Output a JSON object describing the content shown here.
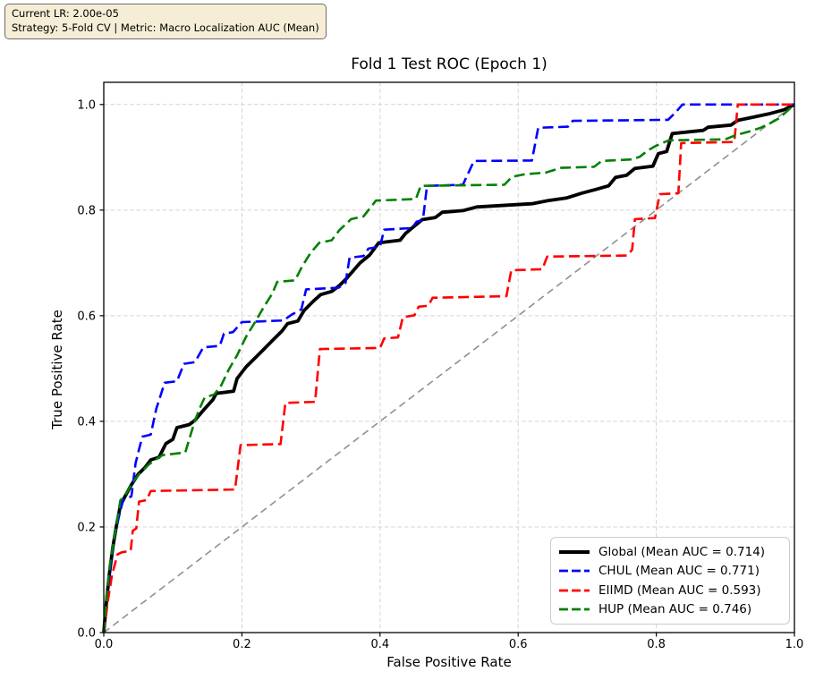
{
  "info_box": {
    "line1": "Current LR: 2.00e-05",
    "line2": "Strategy: 5-Fold CV | Metric: Macro Localization AUC (Mean)"
  },
  "chart_data": {
    "type": "line",
    "subtype": "roc-curves",
    "title": "Fold 1 Test ROC (Epoch 1)",
    "xlabel": "False Positive Rate",
    "ylabel": "True Positive Rate",
    "xlim": [
      0.0,
      1.0
    ],
    "ylim": [
      0.0,
      1.042
    ],
    "x_ticks": [
      0.0,
      0.2,
      0.4,
      0.6,
      0.8,
      1.0
    ],
    "y_ticks": [
      0.0,
      0.2,
      0.4,
      0.6,
      0.8,
      1.0
    ],
    "grid": true,
    "grid_color": "#d3d3d3",
    "legend_position": "lower right",
    "diagonal_reference": {
      "from": [
        0,
        0
      ],
      "to": [
        1,
        1
      ],
      "color": "#909090",
      "style": "dashed"
    },
    "series": [
      {
        "name": "Global",
        "legend_label": "Global (Mean AUC = 0.714)",
        "mean_auc": 0.714,
        "color": "#000000",
        "style": "solid",
        "line_width": 3.8,
        "points": [
          [
            0,
            0
          ],
          [
            0.004,
            0.06
          ],
          [
            0.008,
            0.11
          ],
          [
            0.013,
            0.16
          ],
          [
            0.018,
            0.2
          ],
          [
            0.024,
            0.24
          ],
          [
            0.03,
            0.256
          ],
          [
            0.04,
            0.28
          ],
          [
            0.05,
            0.3
          ],
          [
            0.06,
            0.313
          ],
          [
            0.068,
            0.327
          ],
          [
            0.08,
            0.332
          ],
          [
            0.09,
            0.358
          ],
          [
            0.1,
            0.366
          ],
          [
            0.106,
            0.388
          ],
          [
            0.124,
            0.394
          ],
          [
            0.132,
            0.402
          ],
          [
            0.145,
            0.422
          ],
          [
            0.158,
            0.441
          ],
          [
            0.163,
            0.453
          ],
          [
            0.188,
            0.457
          ],
          [
            0.193,
            0.481
          ],
          [
            0.206,
            0.503
          ],
          [
            0.219,
            0.52
          ],
          [
            0.232,
            0.537
          ],
          [
            0.245,
            0.554
          ],
          [
            0.258,
            0.571
          ],
          [
            0.266,
            0.585
          ],
          [
            0.281,
            0.59
          ],
          [
            0.29,
            0.61
          ],
          [
            0.303,
            0.627
          ],
          [
            0.314,
            0.64
          ],
          [
            0.33,
            0.646
          ],
          [
            0.341,
            0.657
          ],
          [
            0.351,
            0.67
          ],
          [
            0.361,
            0.685
          ],
          [
            0.371,
            0.7
          ],
          [
            0.385,
            0.715
          ],
          [
            0.398,
            0.738
          ],
          [
            0.429,
            0.743
          ],
          [
            0.437,
            0.756
          ],
          [
            0.45,
            0.77
          ],
          [
            0.461,
            0.782
          ],
          [
            0.48,
            0.786
          ],
          [
            0.49,
            0.796
          ],
          [
            0.52,
            0.799
          ],
          [
            0.54,
            0.806
          ],
          [
            0.62,
            0.812
          ],
          [
            0.643,
            0.818
          ],
          [
            0.67,
            0.823
          ],
          [
            0.692,
            0.832
          ],
          [
            0.712,
            0.839
          ],
          [
            0.731,
            0.846
          ],
          [
            0.741,
            0.862
          ],
          [
            0.757,
            0.866
          ],
          [
            0.769,
            0.879
          ],
          [
            0.795,
            0.883
          ],
          [
            0.803,
            0.907
          ],
          [
            0.815,
            0.911
          ],
          [
            0.823,
            0.945
          ],
          [
            0.868,
            0.951
          ],
          [
            0.875,
            0.957
          ],
          [
            0.908,
            0.961
          ],
          [
            0.918,
            0.97
          ],
          [
            0.94,
            0.976
          ],
          [
            0.962,
            0.982
          ],
          [
            0.985,
            0.99
          ],
          [
            1,
            1
          ]
        ]
      },
      {
        "name": "CHUL",
        "legend_label": "CHUL (Mean AUC = 0.771)",
        "mean_auc": 0.771,
        "color": "#0000ff",
        "style": "dashed",
        "line_width": 2.6,
        "points": [
          [
            0,
            0
          ],
          [
            0.005,
            0.07
          ],
          [
            0.01,
            0.13
          ],
          [
            0.015,
            0.18
          ],
          [
            0.021,
            0.215
          ],
          [
            0.028,
            0.251
          ],
          [
            0.04,
            0.258
          ],
          [
            0.046,
            0.32
          ],
          [
            0.051,
            0.347
          ],
          [
            0.056,
            0.371
          ],
          [
            0.068,
            0.375
          ],
          [
            0.076,
            0.424
          ],
          [
            0.083,
            0.452
          ],
          [
            0.088,
            0.473
          ],
          [
            0.106,
            0.476
          ],
          [
            0.116,
            0.509
          ],
          [
            0.132,
            0.512
          ],
          [
            0.144,
            0.54
          ],
          [
            0.168,
            0.543
          ],
          [
            0.174,
            0.566
          ],
          [
            0.187,
            0.569
          ],
          [
            0.2,
            0.588
          ],
          [
            0.26,
            0.591
          ],
          [
            0.272,
            0.602
          ],
          [
            0.286,
            0.612
          ],
          [
            0.293,
            0.65
          ],
          [
            0.34,
            0.653
          ],
          [
            0.35,
            0.662
          ],
          [
            0.356,
            0.71
          ],
          [
            0.376,
            0.713
          ],
          [
            0.383,
            0.727
          ],
          [
            0.4,
            0.731
          ],
          [
            0.406,
            0.763
          ],
          [
            0.446,
            0.766
          ],
          [
            0.453,
            0.778
          ],
          [
            0.462,
            0.781
          ],
          [
            0.468,
            0.846
          ],
          [
            0.52,
            0.848
          ],
          [
            0.536,
            0.893
          ],
          [
            0.62,
            0.894
          ],
          [
            0.629,
            0.956
          ],
          [
            0.672,
            0.958
          ],
          [
            0.679,
            0.969
          ],
          [
            0.817,
            0.971
          ],
          [
            0.828,
            0.985
          ],
          [
            0.838,
            1
          ],
          [
            1,
            1
          ]
        ]
      },
      {
        "name": "EIIMD",
        "legend_label": "EIIMD (Mean AUC = 0.593)",
        "mean_auc": 0.593,
        "color": "#ff0000",
        "style": "dashed",
        "line_width": 2.6,
        "points": [
          [
            0,
            0
          ],
          [
            0.006,
            0.06
          ],
          [
            0.012,
            0.11
          ],
          [
            0.02,
            0.148
          ],
          [
            0.026,
            0.152
          ],
          [
            0.039,
            0.155
          ],
          [
            0.042,
            0.193
          ],
          [
            0.047,
            0.197
          ],
          [
            0.051,
            0.248
          ],
          [
            0.062,
            0.251
          ],
          [
            0.068,
            0.268
          ],
          [
            0.19,
            0.271
          ],
          [
            0.198,
            0.355
          ],
          [
            0.256,
            0.357
          ],
          [
            0.263,
            0.435
          ],
          [
            0.306,
            0.437
          ],
          [
            0.313,
            0.537
          ],
          [
            0.4,
            0.539
          ],
          [
            0.406,
            0.557
          ],
          [
            0.426,
            0.559
          ],
          [
            0.433,
            0.597
          ],
          [
            0.45,
            0.601
          ],
          [
            0.456,
            0.617
          ],
          [
            0.47,
            0.619
          ],
          [
            0.476,
            0.634
          ],
          [
            0.583,
            0.637
          ],
          [
            0.59,
            0.686
          ],
          [
            0.635,
            0.688
          ],
          [
            0.642,
            0.712
          ],
          [
            0.758,
            0.714
          ],
          [
            0.765,
            0.725
          ],
          [
            0.769,
            0.783
          ],
          [
            0.798,
            0.785
          ],
          [
            0.805,
            0.83
          ],
          [
            0.832,
            0.832
          ],
          [
            0.836,
            0.927
          ],
          [
            0.913,
            0.929
          ],
          [
            0.918,
            1
          ],
          [
            1,
            1
          ]
        ]
      },
      {
        "name": "HUP",
        "legend_label": "HUP (Mean AUC = 0.746)",
        "mean_auc": 0.746,
        "color": "#008000",
        "style": "dashed",
        "line_width": 2.6,
        "points": [
          [
            0,
            0
          ],
          [
            0.004,
            0.07
          ],
          [
            0.009,
            0.13
          ],
          [
            0.014,
            0.17
          ],
          [
            0.019,
            0.21
          ],
          [
            0.024,
            0.25
          ],
          [
            0.032,
            0.262
          ],
          [
            0.042,
            0.285
          ],
          [
            0.052,
            0.301
          ],
          [
            0.065,
            0.318
          ],
          [
            0.078,
            0.33
          ],
          [
            0.085,
            0.336
          ],
          [
            0.118,
            0.341
          ],
          [
            0.127,
            0.38
          ],
          [
            0.133,
            0.405
          ],
          [
            0.14,
            0.428
          ],
          [
            0.146,
            0.445
          ],
          [
            0.16,
            0.451
          ],
          [
            0.17,
            0.468
          ],
          [
            0.181,
            0.498
          ],
          [
            0.193,
            0.525
          ],
          [
            0.206,
            0.56
          ],
          [
            0.219,
            0.588
          ],
          [
            0.232,
            0.617
          ],
          [
            0.244,
            0.642
          ],
          [
            0.251,
            0.664
          ],
          [
            0.277,
            0.667
          ],
          [
            0.287,
            0.693
          ],
          [
            0.3,
            0.72
          ],
          [
            0.312,
            0.738
          ],
          [
            0.33,
            0.743
          ],
          [
            0.341,
            0.762
          ],
          [
            0.358,
            0.783
          ],
          [
            0.376,
            0.788
          ],
          [
            0.394,
            0.818
          ],
          [
            0.452,
            0.821
          ],
          [
            0.459,
            0.846
          ],
          [
            0.58,
            0.848
          ],
          [
            0.591,
            0.863
          ],
          [
            0.61,
            0.868
          ],
          [
            0.64,
            0.871
          ],
          [
            0.662,
            0.88
          ],
          [
            0.71,
            0.882
          ],
          [
            0.721,
            0.893
          ],
          [
            0.765,
            0.896
          ],
          [
            0.776,
            0.901
          ],
          [
            0.788,
            0.913
          ],
          [
            0.8,
            0.922
          ],
          [
            0.818,
            0.932
          ],
          [
            0.9,
            0.934
          ],
          [
            0.915,
            0.942
          ],
          [
            0.935,
            0.949
          ],
          [
            0.951,
            0.956
          ],
          [
            0.963,
            0.963
          ],
          [
            0.978,
            0.974
          ],
          [
            1,
            1
          ]
        ]
      }
    ]
  }
}
